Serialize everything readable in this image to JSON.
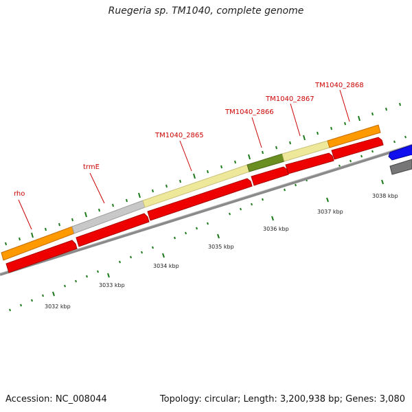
{
  "title": "Ruegeria sp. TM1040, complete genome",
  "footer": {
    "accession": "Accession: NC_008044",
    "summary": "Topology: circular; Length: 3,200,938 bp; Genes: 3,080"
  },
  "colors": {
    "tick": "#1a7a1a",
    "backbone": "#888888",
    "cds": "#ee0000",
    "label": "#cc0000"
  },
  "annotated_genes": [
    {
      "id": "rho",
      "color": "#ff9900"
    },
    {
      "id": "trmE",
      "color": "#c8c8c8"
    },
    {
      "id": "TM1040_2865",
      "color": "#eee89a"
    },
    {
      "id": "TM1040_2866",
      "color": "#6b8e23"
    },
    {
      "id": "TM1040_2867",
      "color": "#eee89a"
    },
    {
      "id": "TM1040_2868",
      "color": "#ff9900"
    }
  ],
  "kbp_ticks": [
    "3032 kbp",
    "3033 kbp",
    "3034 kbp",
    "3035 kbp",
    "3036 kbp",
    "3037 kbp",
    "3038 kbp"
  ]
}
